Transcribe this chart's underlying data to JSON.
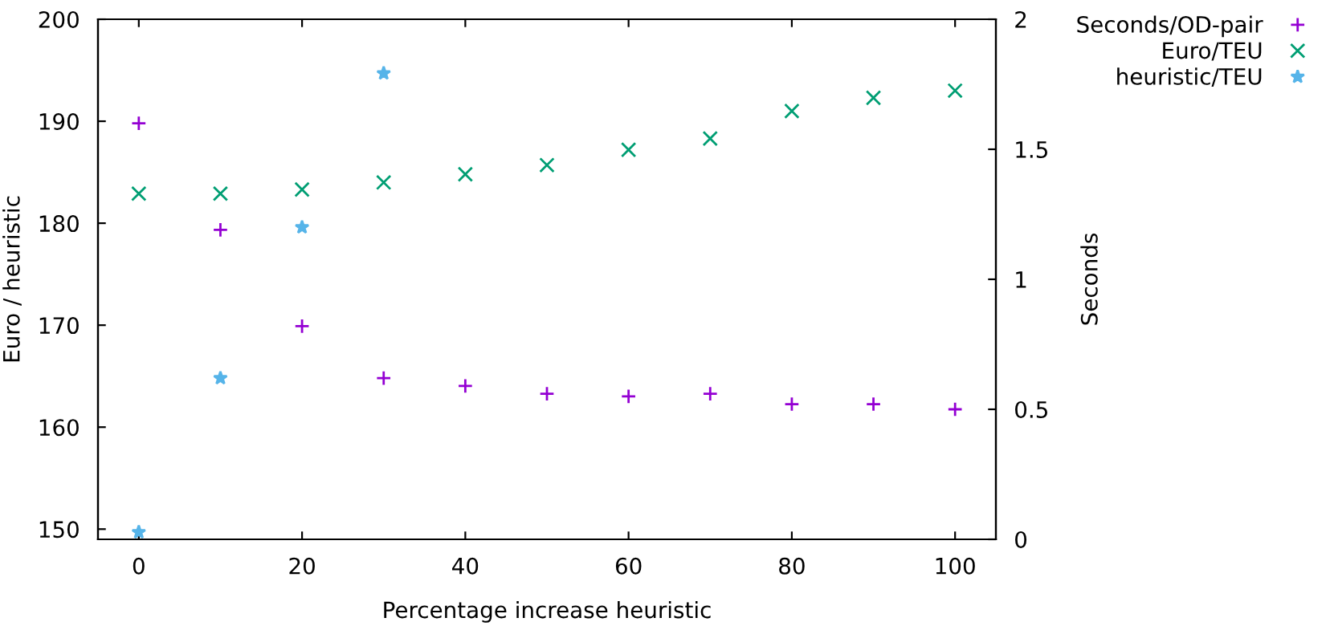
{
  "chart_data": {
    "type": "scatter",
    "xlabel": "Percentage increase heuristic",
    "ylabel": "Euro / heuristic",
    "y2label": "Seconds",
    "x": [
      0,
      10,
      20,
      30,
      40,
      50,
      60,
      70,
      80,
      90,
      100
    ],
    "series": [
      {
        "name": "Seconds/OD-pair",
        "color": "#9400d3",
        "marker": "plus",
        "axis": "y2",
        "values": [
          1.6,
          1.19,
          0.82,
          0.62,
          0.59,
          0.56,
          0.55,
          0.56,
          0.52,
          0.52,
          0.5
        ]
      },
      {
        "name": "Euro/TEU",
        "color": "#009e73",
        "marker": "cross",
        "values": [
          182.9,
          182.9,
          183.3,
          184.0,
          184.8,
          185.7,
          187.2,
          188.3,
          191.0,
          192.3,
          193.0
        ]
      },
      {
        "name": "heuristic/TEU",
        "color": "#56b4e9",
        "marker": "star",
        "x": [
          0,
          10,
          20,
          30
        ],
        "values": [
          149.7,
          164.8,
          179.6,
          194.7
        ]
      }
    ],
    "xlim": [
      -5,
      105
    ],
    "xticks": [
      0,
      20,
      40,
      60,
      80,
      100
    ],
    "ylim": [
      149,
      200
    ],
    "yticks": [
      150,
      160,
      170,
      180,
      190,
      200
    ],
    "y2lim": [
      0,
      2
    ],
    "y2ticks": [
      0,
      0.5,
      1,
      1.5,
      2
    ],
    "grid": false,
    "legend": "top right"
  }
}
